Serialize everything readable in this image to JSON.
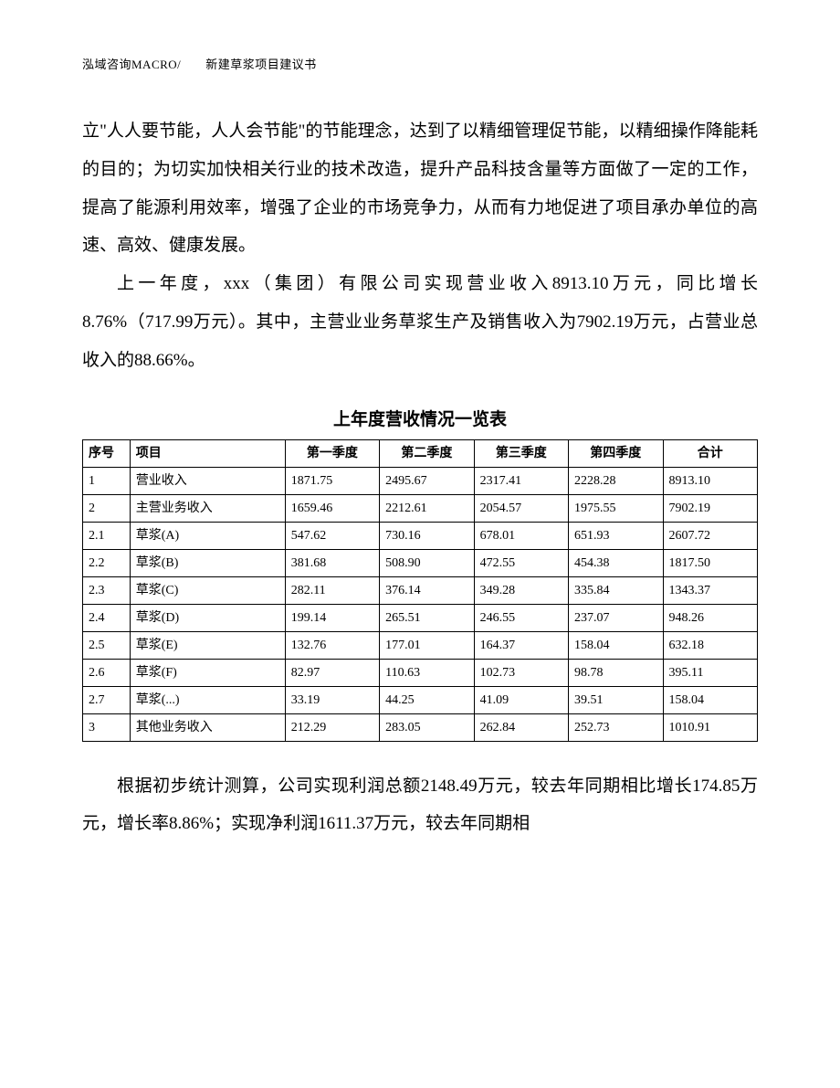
{
  "header": "泓域咨询MACRO/　　新建草浆项目建议书",
  "para1": "立\"人人要节能，人人会节能\"的节能理念，达到了以精细管理促节能，以精细操作降能耗的目的；为切实加快相关行业的技术改造，提升产品科技含量等方面做了一定的工作，提高了能源利用效率，增强了企业的市场竞争力，从而有力地促进了项目承办单位的高速、高效、健康发展。",
  "para2": "上一年度，xxx（集团）有限公司实现营业收入8913.10万元，同比增长8.76%（717.99万元）。其中，主营业业务草浆生产及销售收入为7902.19万元，占营业总收入的88.66%。",
  "table": {
    "title": "上年度营收情况一览表",
    "columns": [
      "序号",
      "项目",
      "第一季度",
      "第二季度",
      "第三季度",
      "第四季度",
      "合计"
    ],
    "rows": [
      [
        "1",
        "营业收入",
        "1871.75",
        "2495.67",
        "2317.41",
        "2228.28",
        "8913.10"
      ],
      [
        "2",
        "主营业务收入",
        "1659.46",
        "2212.61",
        "2054.57",
        "1975.55",
        "7902.19"
      ],
      [
        "2.1",
        "草浆(A)",
        "547.62",
        "730.16",
        "678.01",
        "651.93",
        "2607.72"
      ],
      [
        "2.2",
        "草浆(B)",
        "381.68",
        "508.90",
        "472.55",
        "454.38",
        "1817.50"
      ],
      [
        "2.3",
        "草浆(C)",
        "282.11",
        "376.14",
        "349.28",
        "335.84",
        "1343.37"
      ],
      [
        "2.4",
        "草浆(D)",
        "199.14",
        "265.51",
        "246.55",
        "237.07",
        "948.26"
      ],
      [
        "2.5",
        "草浆(E)",
        "132.76",
        "177.01",
        "164.37",
        "158.04",
        "632.18"
      ],
      [
        "2.6",
        "草浆(F)",
        "82.97",
        "110.63",
        "102.73",
        "98.78",
        "395.11"
      ],
      [
        "2.7",
        "草浆(...)",
        "33.19",
        "44.25",
        "41.09",
        "39.51",
        "158.04"
      ],
      [
        "3",
        "其他业务收入",
        "212.29",
        "283.05",
        "262.84",
        "252.73",
        "1010.91"
      ]
    ]
  },
  "para3": "根据初步统计测算，公司实现利润总额2148.49万元，较去年同期相比增长174.85万元，增长率8.86%；实现净利润1611.37万元，较去年同期相"
}
